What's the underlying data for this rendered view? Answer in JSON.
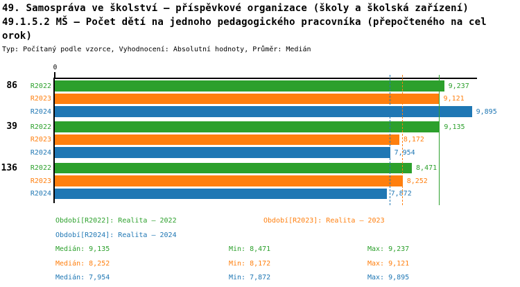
{
  "header": {
    "title_lines": [
      "49. Samospráva ve školství – příspěvkové organizace (školy a školská zařízení)",
      "49.1.5.2 MŠ – Počet dětí na jednoho pedagogického pracovníka (přepočteného na cel",
      "orok)"
    ],
    "subtitle": "Typ: Počítaný podle vzorce, Vyhodnocení: Absolutní hodnoty, Průměr: Medián"
  },
  "colors": {
    "r2022": "#2ca02c",
    "r2023": "#ff7f0e",
    "r2024": "#1f77b4",
    "axis": "#000000",
    "background": "#ffffff"
  },
  "chart_data": {
    "type": "bar",
    "orientation": "horizontal",
    "title": "49.1.5.2 MŠ – Počet dětí na jednoho pedagogického pracovníka (přepočteného na celorok)",
    "x_axis": {
      "origin_label": "0",
      "min": 0,
      "max": 10,
      "grid": false
    },
    "categories": [
      "86",
      "39",
      "136"
    ],
    "series": [
      {
        "name": "R2022",
        "values": [
          9.237,
          9.135,
          8.471
        ]
      },
      {
        "name": "R2023",
        "values": [
          9.121,
          8.172,
          8.252
        ]
      },
      {
        "name": "R2024",
        "values": [
          9.895,
          7.954,
          7.872
        ]
      }
    ],
    "groups": [
      {
        "label": "86",
        "bars": [
          {
            "series": "R2022",
            "value": 9.237,
            "label": "9,237"
          },
          {
            "series": "R2023",
            "value": 9.121,
            "label": "9,121"
          },
          {
            "series": "R2024",
            "value": 9.895,
            "label": "9,895"
          }
        ]
      },
      {
        "label": "39",
        "bars": [
          {
            "series": "R2022",
            "value": 9.135,
            "label": "9,135"
          },
          {
            "series": "R2023",
            "value": 8.172,
            "label": "8,172"
          },
          {
            "series": "R2024",
            "value": 7.954,
            "label": "7,954"
          }
        ]
      },
      {
        "label": "136",
        "bars": [
          {
            "series": "R2022",
            "value": 8.471,
            "label": "8,471"
          },
          {
            "series": "R2023",
            "value": 8.252,
            "label": "8,252"
          },
          {
            "series": "R2024",
            "value": 7.872,
            "label": "7,872"
          }
        ]
      }
    ],
    "median_lines": [
      {
        "series": "R2022",
        "value": 9.135,
        "style": "solid"
      },
      {
        "series": "R2023",
        "value": 8.252,
        "style": "dashed"
      },
      {
        "series": "R2024",
        "value": 7.954,
        "style": "dashed"
      }
    ],
    "legend_position": "bottom"
  },
  "legend": {
    "periods": [
      {
        "series": "R2022",
        "label": "Období[R2022]: Realita – 2022"
      },
      {
        "series": "R2023",
        "label": "Období[R2023]: Realita – 2023"
      },
      {
        "series": "R2024",
        "label": "Období[R2024]: Realita – 2024"
      }
    ],
    "stats": [
      {
        "series": "R2022",
        "median": "Medián: 9,135",
        "min": "Min: 8,471",
        "max": "Max: 9,237"
      },
      {
        "series": "R2023",
        "median": "Medián: 8,252",
        "min": "Min: 8,172",
        "max": "Max: 9,121"
      },
      {
        "series": "R2024",
        "median": "Medián: 7,954",
        "min": "Min: 7,872",
        "max": "Max: 9,895"
      }
    ]
  }
}
